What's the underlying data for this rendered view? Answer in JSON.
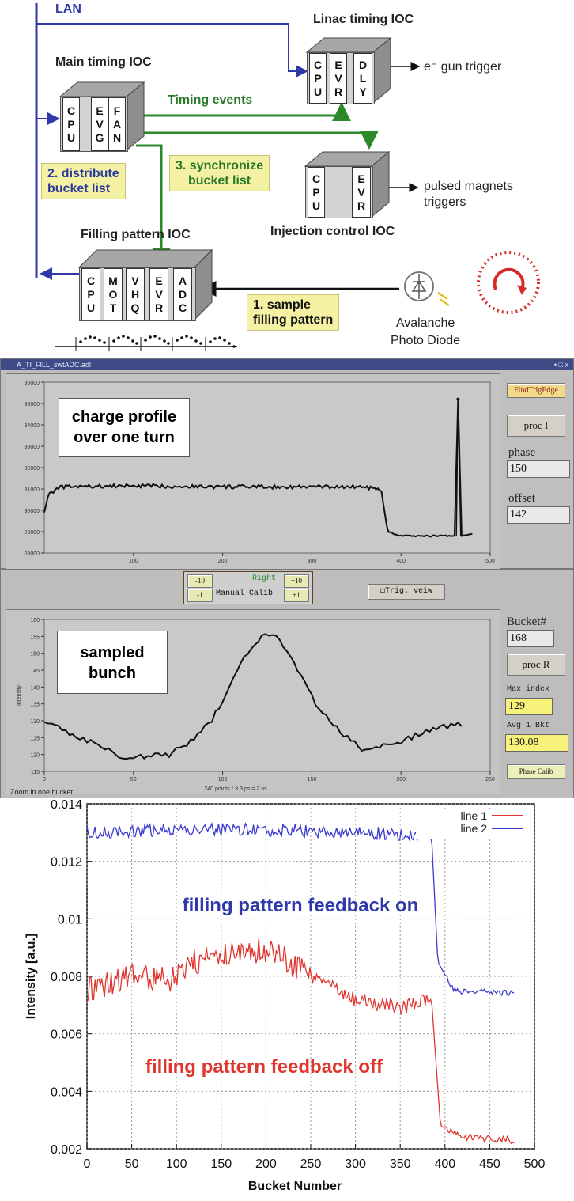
{
  "top": {
    "lan": "LAN",
    "linac_ioc": "Linac timing IOC",
    "main_ioc": "Main timing IOC",
    "injection_ioc": "Injection control IOC",
    "filling_ioc": "Filling pattern IOC",
    "gun_trigger": "e⁻ gun trigger",
    "magnets_trigger": "pulsed magnets\ntriggers",
    "timing_events": "Timing events",
    "note_distribute": "2. distribute\nbucket list",
    "note_sync": "3. synchronize\nbucket list",
    "note_sample": "1. sample\nfilling pattern",
    "apd": "Avalanche\nPhoto Diode",
    "linac_modules": [
      "CPU",
      "EVR",
      "DLY"
    ],
    "main_modules": [
      "CPU",
      "EVG",
      "FAN"
    ],
    "injection_modules": [
      "CPU",
      "",
      "EVR"
    ],
    "filling_modules": [
      "CPU",
      "MOT",
      "VHQ",
      "EVR",
      "ADC"
    ]
  },
  "app": {
    "title": "A_TI_FILL_swtADC.adl",
    "window_controls": "• □ x",
    "btn_findtrig": "FindTrigEdge",
    "btn_proc_i": "proc I",
    "label_phase": "phase",
    "value_phase": "150",
    "label_offset": "offset",
    "value_offset": "142",
    "calib_buttons": [
      "-10",
      "Right",
      "+10",
      "-1",
      "Manual Calib",
      "+1"
    ],
    "btn_trig_view": "Trig. veiw",
    "label_bucket": "Bucket#",
    "value_bucket": "168",
    "btn_proc_r": "proc R",
    "label_max_index": "Max index",
    "value_max_index": "129",
    "label_avg": "Avg 1 Bkt",
    "value_avg": "130.08",
    "btn_phase_calib": "Phase Calib",
    "zoom_label": "Zoom in one bucket",
    "plot1_annotation": "charge profile\nover one turn",
    "plot2_annotation": "sampled\nbunch",
    "plot2_xlabel": "240 points * 8.3 ps = 2 ns",
    "plot2_ylabel": "Intensity"
  },
  "chart_data": [
    {
      "type": "line",
      "series": [
        {
          "name": "",
          "values_summary": [
            [
              0,
              29900
            ],
            [
              5,
              30800
            ],
            [
              20,
              31100
            ],
            [
              100,
              31150
            ],
            [
              200,
              31100
            ],
            [
              300,
              31100
            ],
            [
              360,
              31100
            ],
            [
              378,
              30900
            ],
            [
              385,
              29000
            ],
            [
              400,
              28800
            ],
            [
              460,
              28800
            ],
            [
              464,
              35200
            ],
            [
              468,
              28800
            ],
            [
              480,
              28900
            ]
          ]
        }
      ],
      "xlim": [
        0,
        500
      ],
      "ylim": [
        28000,
        36000
      ],
      "xticks": [
        "100",
        "200",
        "300",
        "400",
        "500"
      ],
      "yticks": [
        "29000",
        "30000",
        "31000",
        "32000",
        "33000",
        "34000",
        "35000",
        "36000"
      ]
    },
    {
      "type": "line",
      "series": [
        {
          "name": "",
          "values_summary": [
            [
              0,
              130
            ],
            [
              20,
              125
            ],
            [
              45,
              119
            ],
            [
              70,
              120
            ],
            [
              85,
              125
            ],
            [
              95,
              131
            ],
            [
              110,
              147
            ],
            [
              122,
              155
            ],
            [
              130,
              155
            ],
            [
              140,
              147
            ],
            [
              152,
              135
            ],
            [
              165,
              127
            ],
            [
              180,
              121
            ],
            [
              200,
              124
            ],
            [
              220,
              128
            ],
            [
              235,
              129
            ]
          ]
        }
      ],
      "xlabel": "240 points * 8.3 ps = 2 ns",
      "ylabel": "Intensity",
      "xlim": [
        0,
        250
      ],
      "ylim": [
        115,
        160
      ],
      "xticks": [
        "0",
        "50",
        "100",
        "150",
        "200",
        "250"
      ],
      "yticks": [
        "115",
        "120",
        "125",
        "130",
        "135",
        "140",
        "145",
        "150",
        "155",
        "160"
      ]
    },
    {
      "type": "line",
      "xlabel": "Bucket Number",
      "ylabel": "Intensity [a.u.]",
      "xlim": [
        0,
        500
      ],
      "ylim": [
        0.002,
        0.014
      ],
      "xticks": [
        "0",
        "50",
        "100",
        "150",
        "200",
        "250",
        "300",
        "350",
        "400",
        "450",
        "500"
      ],
      "yticks": [
        "0.002",
        "0.004",
        "0.006",
        "0.008",
        "0.01",
        "0.012",
        "0.014"
      ],
      "grid": true,
      "legend": "top-right",
      "series": [
        {
          "name": "line 1",
          "color": "#e0342e",
          "values_summary": [
            [
              0,
              0.0075
            ],
            [
              50,
              0.008
            ],
            [
              100,
              0.0079
            ],
            [
              120,
              0.0085
            ],
            [
              150,
              0.0088
            ],
            [
              200,
              0.0089
            ],
            [
              220,
              0.0086
            ],
            [
              250,
              0.008
            ],
            [
              300,
              0.0072
            ],
            [
              350,
              0.0069
            ],
            [
              385,
              0.0072
            ],
            [
              395,
              0.0028
            ],
            [
              420,
              0.0024
            ],
            [
              478,
              0.0023
            ]
          ]
        },
        {
          "name": "line 2",
          "color": "#3a3ad0",
          "values_summary": [
            [
              0,
              0.013
            ],
            [
              100,
              0.0131
            ],
            [
              200,
              0.0131
            ],
            [
              300,
              0.013
            ],
            [
              385,
              0.0129
            ],
            [
              392,
              0.0085
            ],
            [
              410,
              0.0075
            ],
            [
              478,
              0.0074
            ]
          ]
        }
      ],
      "annotations": [
        "filling pattern feedback on",
        "filling pattern feedback off"
      ]
    }
  ]
}
